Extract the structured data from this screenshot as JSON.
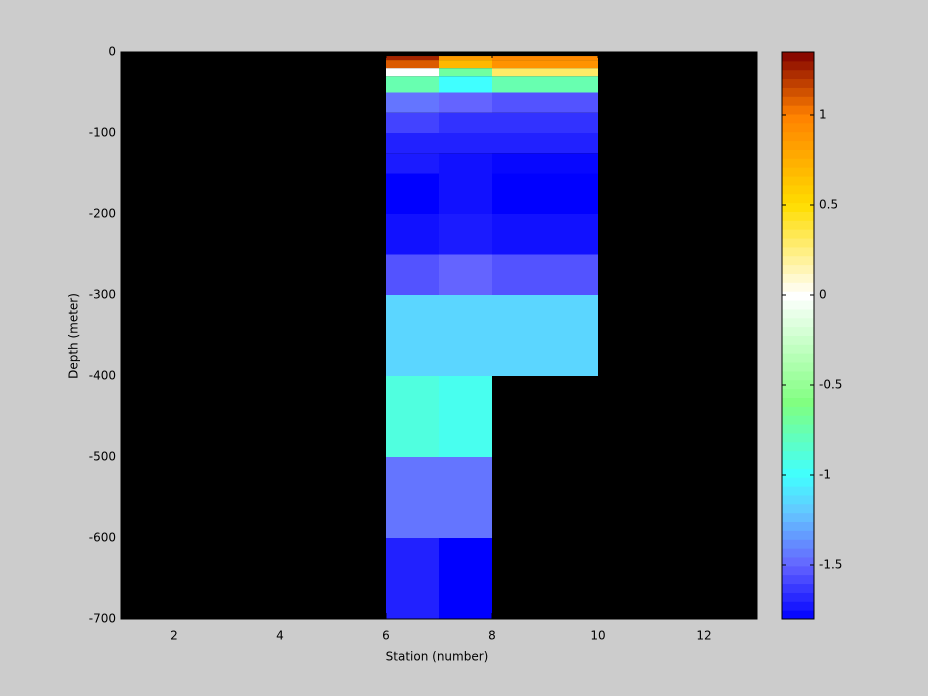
{
  "chart_data": {
    "type": "heatmap",
    "xlabel": "Station (number)",
    "ylabel": "Depth (meter)",
    "xlim": [
      1,
      13
    ],
    "ylim": [
      -700,
      0
    ],
    "xticks": [
      2,
      4,
      6,
      8,
      10,
      12
    ],
    "yticks": [
      0,
      -100,
      -200,
      -300,
      -400,
      -500,
      -600,
      -700
    ],
    "background": "#000000",
    "x_edges": [
      6,
      7,
      8,
      10
    ],
    "y_edges": [
      -5,
      -10,
      -20,
      -30,
      -50,
      -75,
      -100,
      -125,
      -150,
      -200,
      -250,
      -300,
      -400,
      -500,
      -600,
      -700
    ],
    "values": [
      [
        1.25,
        0.85,
        0.95
      ],
      [
        1.1,
        0.7,
        0.9
      ],
      [
        0,
        -0.7,
        0.3
      ],
      [
        -0.75,
        -1.0,
        -0.75
      ],
      [
        -1.45,
        -1.5,
        -1.55
      ],
      [
        -1.6,
        -1.65,
        -1.65
      ],
      [
        -1.7,
        -1.7,
        -1.7
      ],
      [
        -1.72,
        -1.75,
        -1.78
      ],
      [
        -1.8,
        -1.75,
        -1.8
      ],
      [
        -1.75,
        -1.72,
        -1.75
      ],
      [
        -1.55,
        -1.5,
        -1.55
      ],
      [
        -1.15,
        -1.15,
        -1.15
      ],
      [
        -0.9,
        -0.95,
        null
      ],
      [
        -1.45,
        -1.45,
        null
      ],
      [
        -1.7,
        -1.8,
        null
      ]
    ],
    "clim": [
      -1.8,
      1.35
    ],
    "cticks": [
      -1.5,
      -1,
      -0.5,
      0,
      0.5,
      1
    ],
    "colorscale": [
      [
        -1.8,
        "#0000ff"
      ],
      [
        -1.5,
        "#6464ff"
      ],
      [
        -1.2,
        "#64c8ff"
      ],
      [
        -1.0,
        "#40ffff"
      ],
      [
        -0.6,
        "#80ff80"
      ],
      [
        0,
        "#ffffff"
      ],
      [
        0.5,
        "#ffdd00"
      ],
      [
        1.0,
        "#ff8000"
      ],
      [
        1.35,
        "#800000"
      ]
    ]
  }
}
